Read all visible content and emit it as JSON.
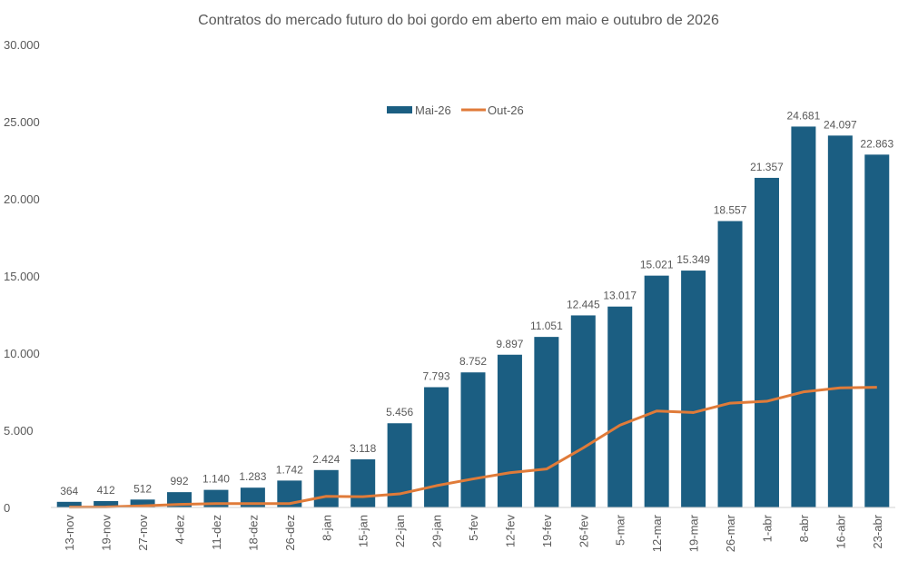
{
  "chart_data": {
    "type": "bar",
    "title": "Contratos do mercado futuro do boi gordo em aberto em maio  e outubro de 2026",
    "categories": [
      "13-nov",
      "19-nov",
      "27-nov",
      "4-dez",
      "11-dez",
      "18-dez",
      "26-dez",
      "8-jan",
      "15-jan",
      "22-jan",
      "29-jan",
      "5-fev",
      "12-fev",
      "19-fev",
      "26-fev",
      "5-mar",
      "12-mar",
      "19-mar",
      "26-mar",
      "1-abr",
      "8-abr",
      "16-abr",
      "23-abr"
    ],
    "series": [
      {
        "name": "Mai-26",
        "type": "bar",
        "color": "#1b5e82",
        "values": [
          364,
          412,
          512,
          992,
          1140,
          1283,
          1742,
          2424,
          3118,
          5456,
          7793,
          8752,
          9897,
          11051,
          12445,
          13017,
          15021,
          15349,
          18557,
          21357,
          24681,
          24097,
          22863
        ],
        "labels": [
          "364",
          "412",
          "512",
          "992",
          "1.140",
          "1.283",
          "1.742",
          "2.424",
          "3.118",
          "5.456",
          "7.793",
          "8.752",
          "9.897",
          "11.051",
          "12.445",
          "13.017",
          "15.021",
          "15.349",
          "18.557",
          "21.357",
          "24.681",
          "24.097",
          "22.863"
        ]
      },
      {
        "name": "Out-26",
        "type": "line",
        "color": "#e07b39",
        "values": [
          20,
          30,
          100,
          200,
          250,
          250,
          250,
          720,
          700,
          880,
          1410,
          1850,
          2250,
          2490,
          3860,
          5330,
          6250,
          6150,
          6760,
          6880,
          7490,
          7750,
          7790
        ]
      }
    ],
    "yaxis": {
      "min": 0,
      "max": 30000,
      "ticks": [
        0,
        5000,
        10000,
        15000,
        20000,
        25000,
        30000
      ],
      "tick_labels": [
        "0",
        "5.000",
        "10.000",
        "15.000",
        "20.000",
        "25.000",
        "30.000"
      ]
    },
    "grid": false,
    "legend": "top-center"
  }
}
